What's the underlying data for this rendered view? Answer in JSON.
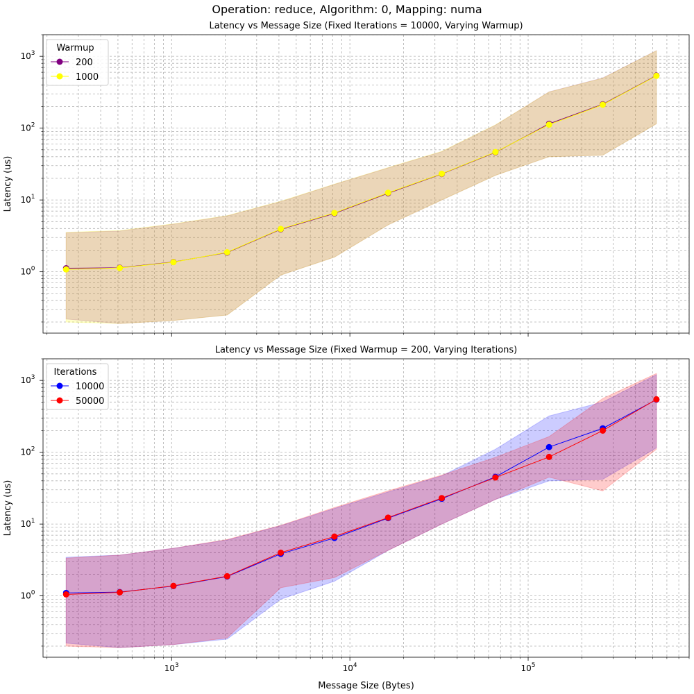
{
  "suptitle": "Operation: reduce, Algorithm: 0, Mapping: numa",
  "chart_data": [
    {
      "type": "line",
      "title": "Latency vs Message Size (Fixed Iterations = 10000, Varying Warmup)",
      "xlabel": "",
      "ylabel": "Latency (us)",
      "xscale": "log",
      "yscale": "log",
      "xlim": [
        190,
        800000
      ],
      "ylim": [
        0.14,
        2000
      ],
      "grid": true,
      "legend": {
        "title": "Warmup",
        "placement": "top-left"
      },
      "x": [
        256,
        512,
        1024,
        2048,
        4096,
        8192,
        16384,
        32768,
        65536,
        131072,
        262144,
        524288
      ],
      "series": [
        {
          "name": "200",
          "color": "#800080",
          "band_color": "#800080",
          "values": [
            1.12,
            1.14,
            1.37,
            1.85,
            3.9,
            6.5,
            12.4,
            23.0,
            46.0,
            115.0,
            215.0,
            540.0
          ],
          "upper": [
            3.5,
            3.7,
            4.6,
            6.0,
            9.5,
            16.5,
            28.0,
            47.0,
            110.0,
            320.0,
            500.0,
            1200.0
          ],
          "lower": [
            0.22,
            0.19,
            0.21,
            0.25,
            0.9,
            1.6,
            4.5,
            10.0,
            22.0,
            40.0,
            42.0,
            115.0
          ]
        },
        {
          "name": "1000",
          "color": "#ffff00",
          "band_color": "#ffff00",
          "values": [
            1.08,
            1.13,
            1.36,
            1.87,
            3.95,
            6.6,
            12.6,
            23.2,
            46.5,
            112.0,
            212.0,
            535.0
          ],
          "upper": [
            3.55,
            3.75,
            4.65,
            6.05,
            9.6,
            16.6,
            28.2,
            47.5,
            111.0,
            318.0,
            495.0,
            1195.0
          ],
          "lower": [
            0.2,
            0.19,
            0.21,
            0.25,
            0.9,
            1.6,
            4.5,
            10.0,
            22.0,
            40.0,
            42.0,
            115.0
          ]
        }
      ]
    },
    {
      "type": "line",
      "title": "Latency vs Message Size (Fixed Warmup = 200, Varying Iterations)",
      "xlabel": "Message Size (Bytes)",
      "ylabel": "Latency (us)",
      "xscale": "log",
      "yscale": "log",
      "xlim": [
        190,
        800000
      ],
      "ylim": [
        0.14,
        2000
      ],
      "grid": true,
      "legend": {
        "title": "Iterations",
        "placement": "top-left"
      },
      "x": [
        256,
        512,
        1024,
        2048,
        4096,
        8192,
        16384,
        32768,
        65536,
        131072,
        262144,
        524288
      ],
      "series": [
        {
          "name": "10000",
          "color": "#0000ff",
          "band_color": "#0000ff",
          "values": [
            1.1,
            1.13,
            1.37,
            1.86,
            3.85,
            6.4,
            12.1,
            22.5,
            45.5,
            118.0,
            215.0,
            540.0
          ],
          "upper": [
            3.45,
            3.7,
            4.6,
            6.0,
            9.5,
            16.5,
            28.0,
            47.0,
            110.0,
            320.0,
            500.0,
            1200.0
          ],
          "lower": [
            0.22,
            0.19,
            0.21,
            0.25,
            0.9,
            1.6,
            4.3,
            10.0,
            22.0,
            40.0,
            42.0,
            115.0
          ]
        },
        {
          "name": "50000",
          "color": "#ff0000",
          "band_color": "#ff0000",
          "values": [
            1.05,
            1.12,
            1.38,
            1.88,
            4.0,
            6.7,
            12.3,
            23.0,
            44.5,
            86.0,
            200.0,
            545.0
          ],
          "upper": [
            3.35,
            3.7,
            4.6,
            6.1,
            9.6,
            17.0,
            29.0,
            48.0,
            85.0,
            165.0,
            560.0,
            1250.0
          ],
          "lower": [
            0.2,
            0.19,
            0.21,
            0.26,
            1.3,
            1.8,
            4.3,
            10.0,
            22.0,
            45.0,
            29.0,
            110.0
          ]
        }
      ]
    }
  ]
}
